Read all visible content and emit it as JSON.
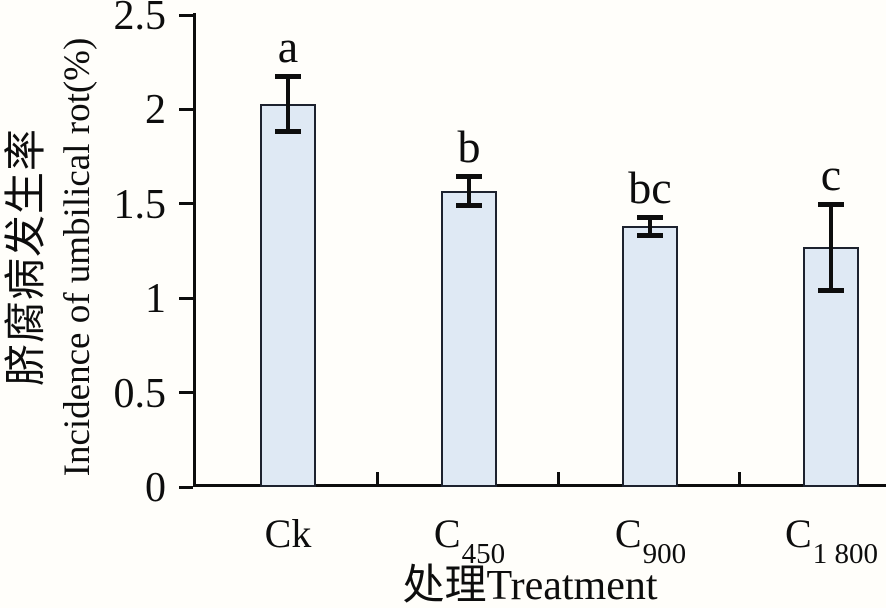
{
  "figure": {
    "background": "#fffefa"
  },
  "chart_data": {
    "type": "bar",
    "title": "",
    "xlabel": "处理Treatment",
    "ylabel_cn": "脐腐病发生率",
    "ylabel_en": "Incidence of umbilical rot(%)",
    "ylim": [
      0,
      2.5
    ],
    "grid": false,
    "legend": false,
    "yticks": [
      {
        "value": 0,
        "label": "0"
      },
      {
        "value": 0.5,
        "label": "0.5"
      },
      {
        "value": 1,
        "label": "1"
      },
      {
        "value": 1.5,
        "label": "1.5"
      },
      {
        "value": 2,
        "label": "2"
      },
      {
        "value": 2.5,
        "label": "2.5"
      }
    ],
    "categories": [
      {
        "base": "Ck",
        "sub": ""
      },
      {
        "base": "C",
        "sub": "450"
      },
      {
        "base": "C",
        "sub": "900"
      },
      {
        "base": "C",
        "sub": "1 800"
      }
    ],
    "series": [
      {
        "name": "Incidence of umbilical rot (%)",
        "values": [
          2.03,
          1.57,
          1.38,
          1.27
        ],
        "errors": [
          0.16,
          0.09,
          0.06,
          0.24
        ],
        "sig_letters": [
          "a",
          "b",
          "bc",
          "c"
        ]
      }
    ],
    "colors": {
      "bar_fill": "#dfe9f4",
      "bar_border": "#1d222e",
      "error_bar": "#0d0d0d",
      "axis": "#0d0d0d",
      "text": "#0d0d0d"
    }
  }
}
